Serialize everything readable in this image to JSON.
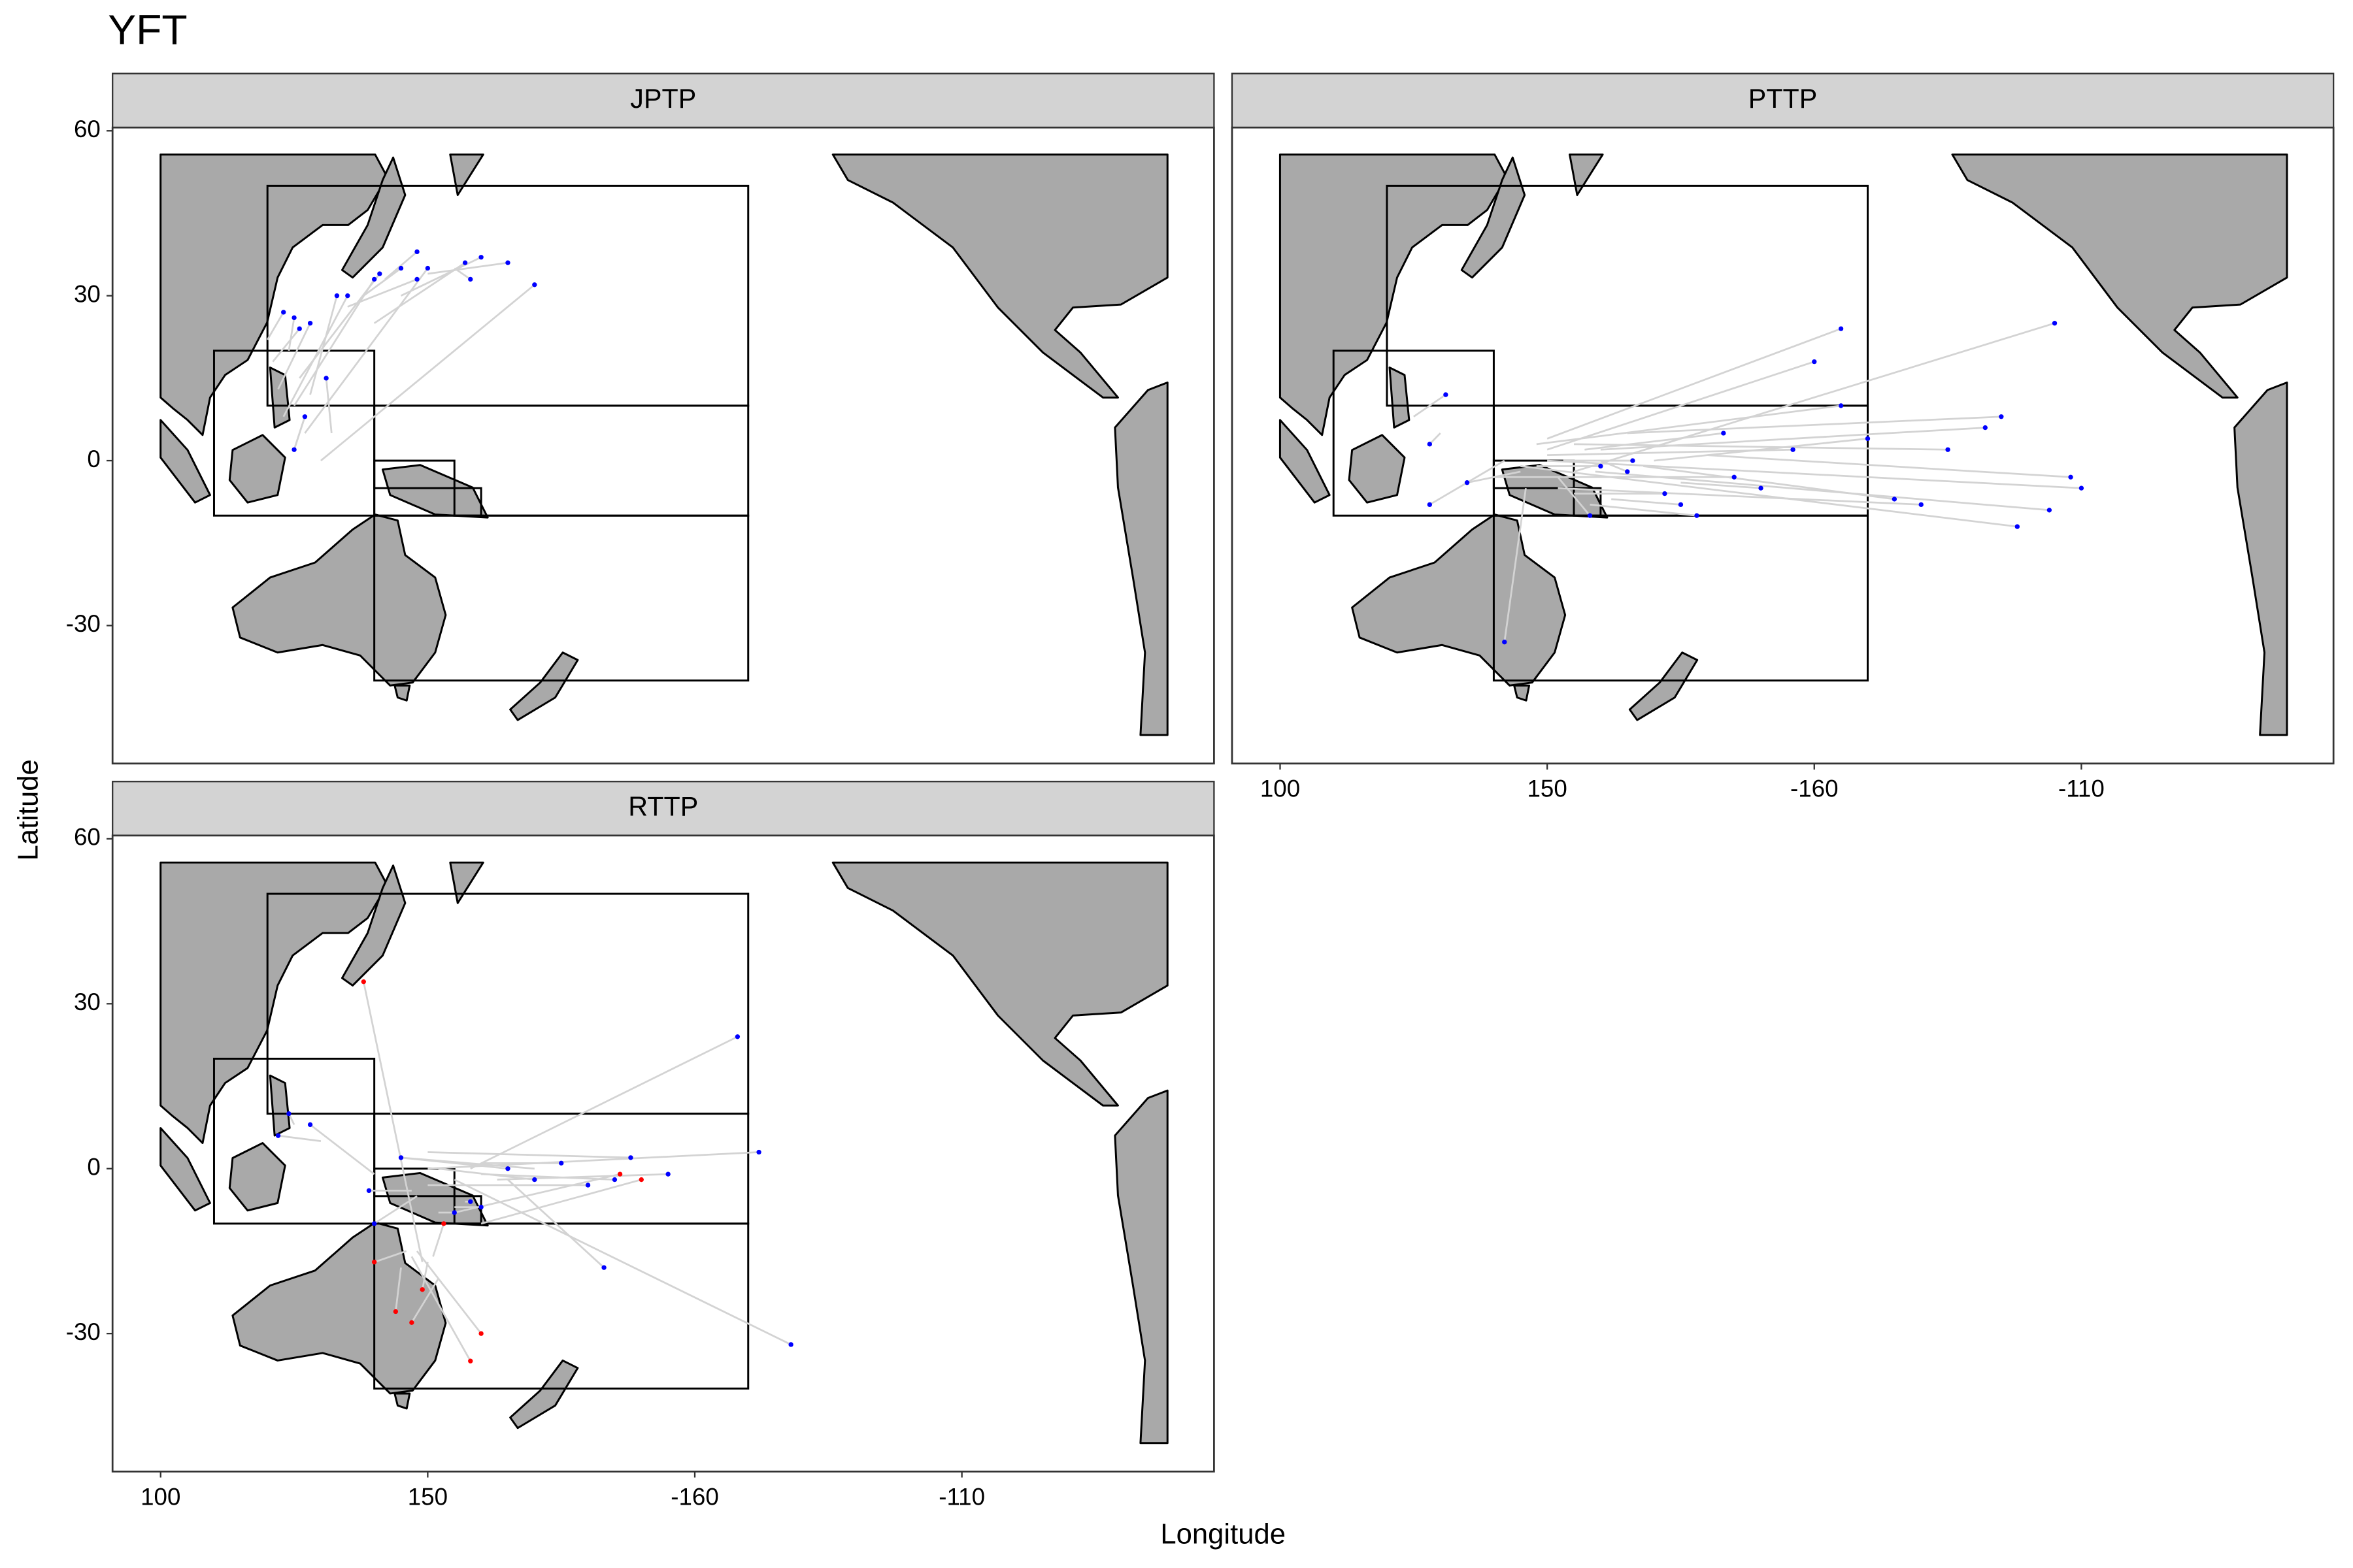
{
  "chart_data": {
    "type": "scatter",
    "title": "YFT",
    "xlabel": "Longitude",
    "ylabel": "Latitude",
    "xlim": [
      91,
      297.2
    ],
    "ylim": [
      -55.1,
      60.6
    ],
    "xticks": [
      100,
      150,
      {
        "value": 200,
        "label": "-160"
      },
      {
        "value": 250,
        "label": "-110"
      }
    ],
    "yticks": [
      -30,
      0,
      30,
      60
    ],
    "line_color": "#d3d3d3",
    "regions": [
      [
        120,
        210,
        10,
        50
      ],
      [
        110,
        140,
        -10,
        20
      ],
      [
        140,
        210,
        -10,
        10
      ],
      [
        140,
        210,
        -40,
        -10
      ],
      [
        140,
        155,
        -5,
        0
      ],
      [
        155,
        160,
        -10,
        -5
      ]
    ],
    "facets": [
      {
        "name": "JPTP",
        "series": [
          {
            "color": "#0000ff",
            "x0": [
              125,
              122,
              127,
              123,
              140,
              130,
              126,
              121,
              145,
              135,
              128,
              124,
              150,
              132,
              125,
              142,
              120,
              138,
              127,
              155
            ],
            "y0": [
              10,
              13,
              5,
              8,
              25,
              0,
              15,
              18,
              30,
              28,
              12,
              20,
              34,
              5,
              2,
              33,
              22,
              30,
              8,
              35
            ],
            "x": [
              140,
              128,
              150,
              135,
              157,
              170,
              141,
              126,
              160,
              148,
              133,
              125,
              165,
              131,
              127,
              148,
              123,
              145,
              125,
              158
            ],
            "y": [
              33,
              25,
              35,
              30,
              36,
              32,
              34,
              24,
              37,
              33,
              30,
              26,
              36,
              15,
              8,
              38,
              27,
              35,
              2,
              33
            ]
          }
        ]
      },
      {
        "name": "PTTP",
        "series": [
          {
            "color": "#0000ff",
            "x0": [
              150,
              155,
              145,
              160,
              152,
              148,
              170,
              140,
              158,
              165,
              150,
              155,
              125,
              130,
              145,
              160,
              175,
              150,
              148,
              155,
              162,
              142,
              180,
              152,
              157,
              146,
              168,
              150,
              153,
              159
            ],
            "y0": [
              0,
              -2,
              -1,
              2,
              -5,
              3,
              0,
              -3,
              -8,
              5,
              1,
              -6,
              8,
              5,
              -2,
              0,
              -4,
              2,
              -1,
              3,
              -7,
              0,
              1,
              -3,
              2,
              -5,
              -1,
              4,
              0,
              -2
            ],
            "x": [
              250,
              245,
              238,
              232,
              220,
              205,
              210,
              185,
              178,
              235,
              196,
              172,
              131,
              128,
              135,
              165,
              190,
              200,
              160,
              225,
              175,
              128,
              248,
              158,
              183,
              142,
              215,
              205,
              166,
              244
            ],
            "y": [
              -5,
              25,
              -12,
              6,
              -8,
              10,
              4,
              -3,
              -10,
              8,
              2,
              -6,
              12,
              3,
              -4,
              -2,
              -5,
              18,
              -1,
              2,
              -8,
              -8,
              -3,
              -10,
              5,
              -33,
              -7,
              24,
              0,
              -9
            ]
          }
        ]
      },
      {
        "name": "RTTP",
        "series": [
          {
            "color": "#0000ff",
            "x0": [
              150,
              155,
              148,
              160,
              145,
              152,
              158,
              125,
              130,
              150,
              160,
              155,
              165,
              147,
              150,
              140,
              152,
              157,
              163,
              170
            ],
            "y0": [
              0,
              -2,
              -5,
              -1,
              2,
              -8,
              0,
              8,
              5,
              -3,
              1,
              -7,
              -2,
              -4,
              3,
              -1,
              0,
              -6,
              -2,
              0
            ],
            "x": [
              212,
              218,
              140,
              185,
              165,
              155,
              208,
              124,
              122,
              180,
              175,
              160,
              183,
              139,
              188,
              128,
              170,
              158,
              195,
              145
            ],
            "y": [
              3,
              -32,
              -10,
              -2,
              0,
              -8,
              24,
              10,
              6,
              -3,
              1,
              -7,
              -18,
              -4,
              2,
              8,
              -2,
              -6,
              -1,
              2
            ]
          },
          {
            "color": "#ff0000",
            "x0": [
              147,
              150,
              148,
              152,
              145,
              160,
              155,
              151,
              149,
              146
            ],
            "y0": [
              -16,
              -17,
              -15,
              -20,
              -18,
              -10,
              -8,
              -16,
              -17,
              -15
            ],
            "x": [
              158,
              149,
              160,
              147,
              144,
              190,
              186,
              153,
              138,
              140
            ],
            "y": [
              -35,
              -22,
              -30,
              -28,
              -26,
              -2,
              -1,
              -10,
              34,
              -17
            ]
          }
        ]
      }
    ]
  }
}
